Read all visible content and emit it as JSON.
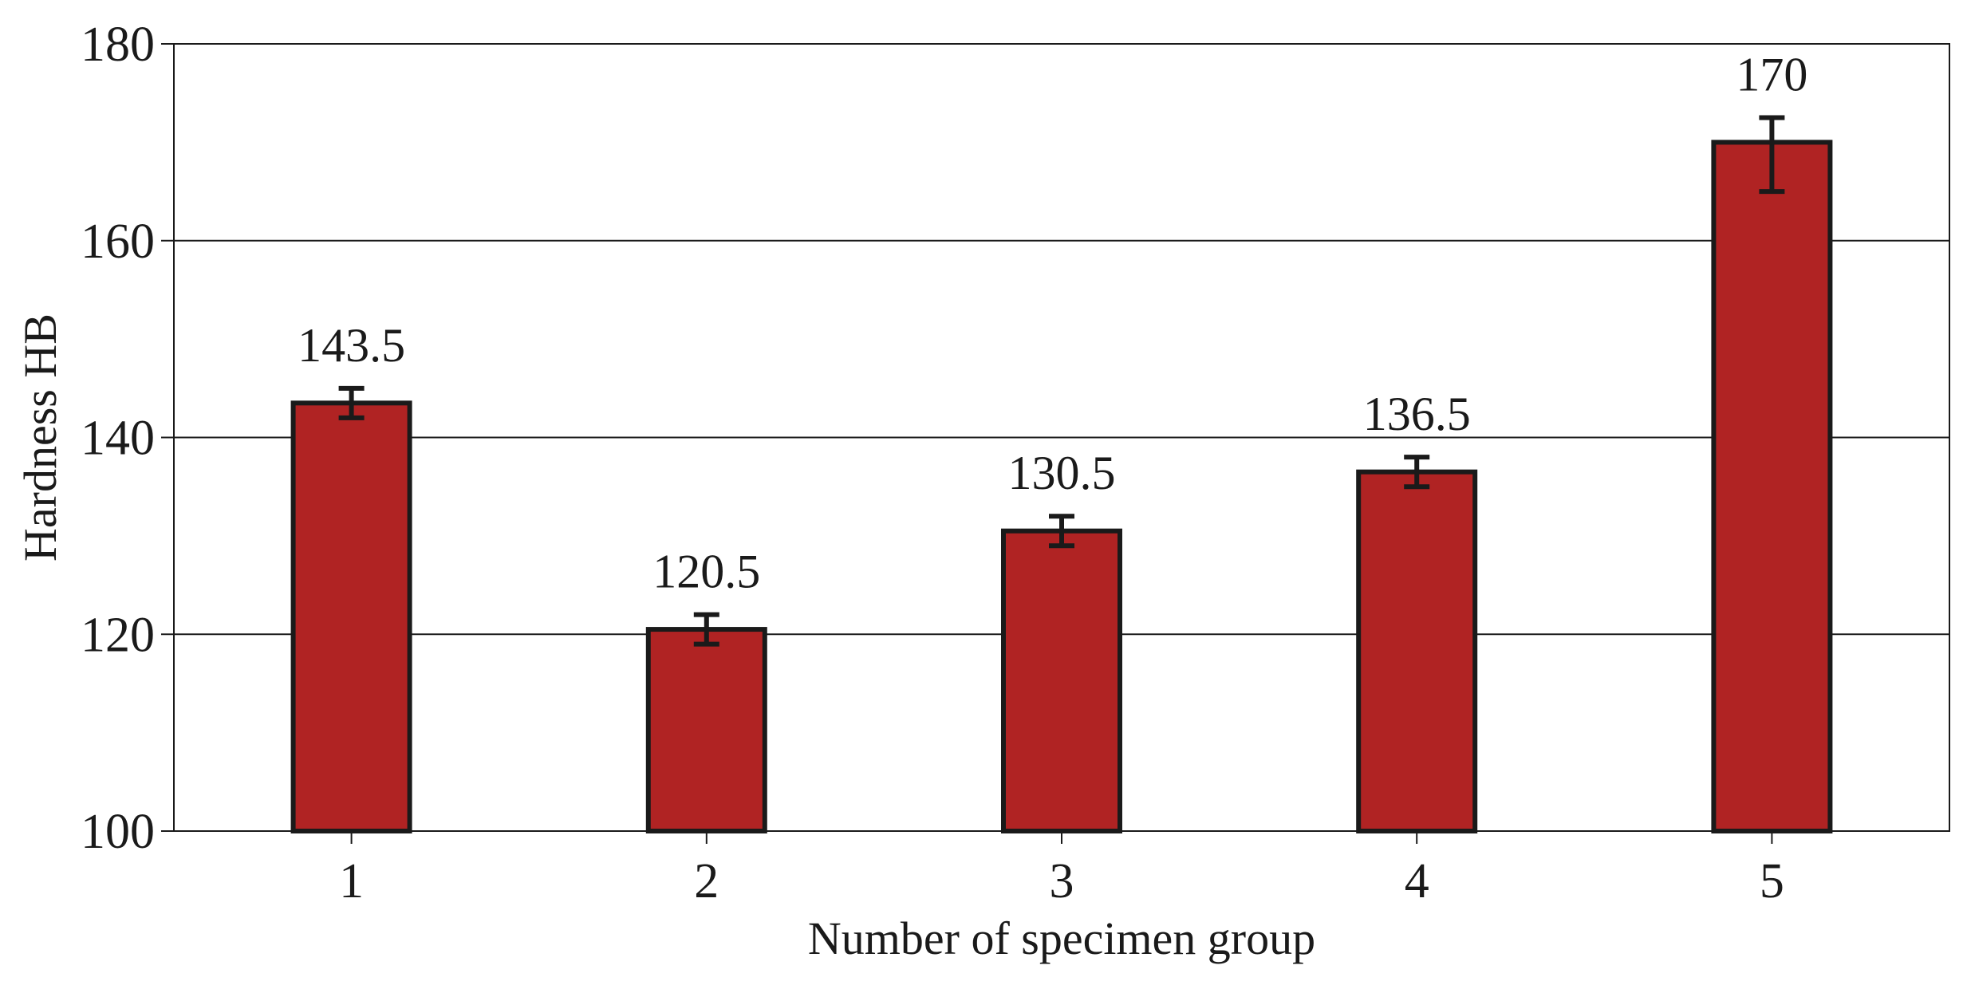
{
  "chart_data": {
    "type": "bar",
    "title": "",
    "xlabel": "Number of specimen group",
    "ylabel": "Hardness HB",
    "categories": [
      "1",
      "2",
      "3",
      "4",
      "5"
    ],
    "values": [
      143.5,
      120.5,
      130.5,
      136.5,
      170
    ],
    "value_labels": [
      "143.5",
      "120.5",
      "130.5",
      "136.5",
      "170"
    ],
    "error_low": [
      142,
      119,
      129,
      135,
      165
    ],
    "error_high": [
      145,
      122,
      132,
      138,
      172.5
    ],
    "ylim": [
      100,
      180
    ],
    "yticks": [
      100,
      120,
      140,
      160,
      180
    ],
    "ytick_labels": [
      "100",
      "120",
      "140",
      "160",
      "180"
    ],
    "grid": true,
    "legend": "none",
    "colors": {
      "bar": "#b02323",
      "bar_edge": "#1a1a1a",
      "error_bar": "#1a1a1a",
      "grid": "#1a1a1a"
    }
  }
}
